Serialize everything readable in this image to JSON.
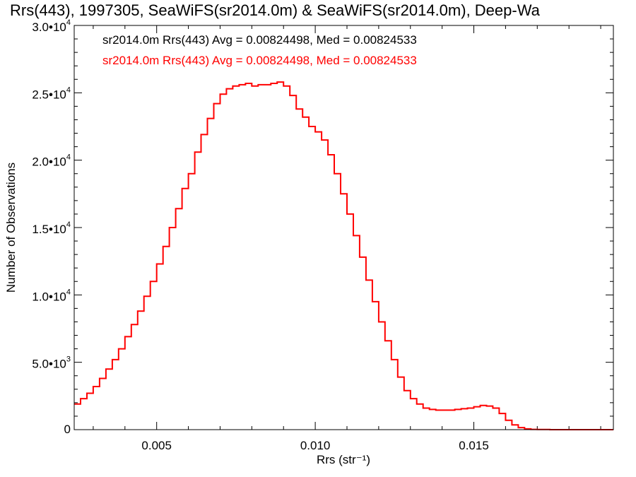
{
  "chart_data": {
    "type": "line",
    "title": "Rrs(443), 1997305, SeaWiFS(sr2014.0m) & SeaWiFS(sr2014.0m), Deep-Wa",
    "xlabel": "Rrs (str⁻¹)",
    "ylabel": "Number of Observations",
    "xlim": [
      0.0024,
      0.0194
    ],
    "ylim": [
      0,
      30000
    ],
    "x_ticks": [
      {
        "value": 0.005,
        "label": "0.005"
      },
      {
        "value": 0.01,
        "label": "0.010"
      },
      {
        "value": 0.015,
        "label": "0.015"
      }
    ],
    "y_ticks": [
      {
        "value": 0,
        "label": "0"
      },
      {
        "value": 5000,
        "label": "5.0•10",
        "exp": "3"
      },
      {
        "value": 10000,
        "label": "1.0•10",
        "exp": "4"
      },
      {
        "value": 15000,
        "label": "1.5•10",
        "exp": "4"
      },
      {
        "value": 20000,
        "label": "2.0•10",
        "exp": "4"
      },
      {
        "value": 25000,
        "label": "2.5•10",
        "exp": "4"
      },
      {
        "value": 30000,
        "label": "3.0•10",
        "exp": "4"
      }
    ],
    "annotations": [
      {
        "text": "sr2014.0m Rrs(443) Avg = 0.00824498, Med = 0.00824533",
        "color": "#000000"
      },
      {
        "text": "sr2014.0m Rrs(443) Avg = 0.00824498, Med = 0.00824533",
        "color": "#ff0000"
      }
    ],
    "series": [
      {
        "color": "#ff0000",
        "x": [
          0.0024,
          0.0026,
          0.0028,
          0.003,
          0.0032,
          0.0034,
          0.0036,
          0.0038,
          0.004,
          0.0042,
          0.0044,
          0.0046,
          0.0048,
          0.005,
          0.0052,
          0.0054,
          0.0056,
          0.0058,
          0.006,
          0.0062,
          0.0064,
          0.0066,
          0.0068,
          0.007,
          0.0072,
          0.0074,
          0.0076,
          0.0078,
          0.008,
          0.0082,
          0.0084,
          0.0086,
          0.0088,
          0.009,
          0.0092,
          0.0094,
          0.0096,
          0.0098,
          0.01,
          0.0102,
          0.0104,
          0.0106,
          0.0108,
          0.011,
          0.0112,
          0.0114,
          0.0116,
          0.0118,
          0.012,
          0.0122,
          0.0124,
          0.0126,
          0.0128,
          0.013,
          0.0132,
          0.0134,
          0.0136,
          0.0138,
          0.014,
          0.0142,
          0.0144,
          0.0146,
          0.0148,
          0.015,
          0.0152,
          0.0154,
          0.0156,
          0.0158,
          0.016,
          0.0162,
          0.0164,
          0.0166,
          0.0168,
          0.017,
          0.0174,
          0.018,
          0.0186,
          0.0194
        ],
        "y": [
          1900,
          2300,
          2700,
          3200,
          3800,
          4500,
          5200,
          6000,
          6900,
          7800,
          8800,
          9900,
          11000,
          12300,
          13600,
          15000,
          16400,
          17900,
          19000,
          20600,
          21900,
          23100,
          24200,
          24900,
          25300,
          25500,
          25600,
          25700,
          25500,
          25600,
          25600,
          25700,
          25800,
          25500,
          24800,
          23800,
          23200,
          22500,
          22100,
          21500,
          20400,
          19000,
          17500,
          16000,
          14400,
          12800,
          11100,
          9500,
          8000,
          6600,
          5200,
          3900,
          2900,
          2300,
          1900,
          1600,
          1500,
          1450,
          1450,
          1450,
          1500,
          1550,
          1600,
          1700,
          1800,
          1750,
          1600,
          1200,
          700,
          350,
          150,
          60,
          20,
          10,
          0,
          0,
          0,
          0
        ]
      }
    ],
    "grid": false
  }
}
